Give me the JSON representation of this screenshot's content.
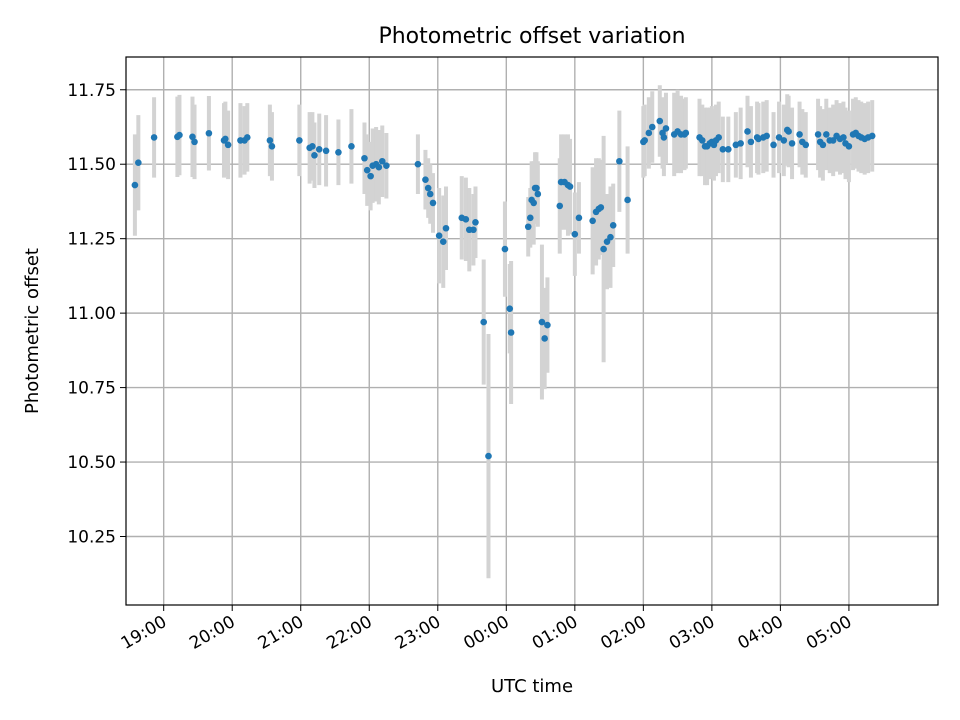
{
  "chart_data": {
    "type": "scatter",
    "title": "Photometric offset variation",
    "xlabel": "UTC time",
    "ylabel": "Photometric offset",
    "grid": true,
    "x_axis": {
      "unit": "hours (UTC clock)",
      "ticks": [
        19,
        20,
        21,
        22,
        23,
        24,
        25,
        26,
        27,
        28,
        29
      ],
      "tick_labels": [
        "19:00",
        "20:00",
        "21:00",
        "22:00",
        "23:00",
        "00:00",
        "01:00",
        "02:00",
        "03:00",
        "04:00",
        "05:00"
      ],
      "xlim": [
        18.45,
        30.3
      ]
    },
    "y_axis": {
      "ticks": [
        10.25,
        10.5,
        10.75,
        11.0,
        11.25,
        11.5,
        11.75
      ],
      "tick_labels": [
        "10.25",
        "10.50",
        "10.75",
        "11.00",
        "11.25",
        "11.50",
        "11.75"
      ],
      "ylim": [
        10.02,
        11.86
      ]
    },
    "series": [
      {
        "color": "#1f77b4",
        "error_color": "#d3d3d3",
        "points": [
          [
            18.58,
            11.43,
            0.17
          ],
          [
            18.63,
            11.505,
            0.16
          ],
          [
            18.86,
            11.59,
            0.135
          ],
          [
            19.2,
            11.592,
            0.135
          ],
          [
            19.23,
            11.598,
            0.135
          ],
          [
            19.42,
            11.592,
            0.135
          ],
          [
            19.45,
            11.575,
            0.125
          ],
          [
            19.66,
            11.604,
            0.125
          ],
          [
            19.88,
            11.58,
            0.125
          ],
          [
            19.9,
            11.585,
            0.125
          ],
          [
            19.94,
            11.565,
            0.115
          ],
          [
            20.12,
            11.58,
            0.125
          ],
          [
            20.18,
            11.58,
            0.115
          ],
          [
            20.22,
            11.59,
            0.115
          ],
          [
            20.55,
            11.58,
            0.12
          ],
          [
            20.58,
            11.56,
            0.115
          ],
          [
            20.98,
            11.58,
            0.12
          ],
          [
            21.13,
            11.555,
            0.12
          ],
          [
            21.17,
            11.56,
            0.115
          ],
          [
            21.2,
            11.53,
            0.11
          ],
          [
            21.27,
            11.55,
            0.12
          ],
          [
            21.37,
            11.545,
            0.12
          ],
          [
            21.55,
            11.54,
            0.11
          ],
          [
            21.74,
            11.56,
            0.125
          ],
          [
            21.93,
            11.52,
            0.12
          ],
          [
            21.97,
            11.48,
            0.12
          ],
          [
            22.02,
            11.46,
            0.115
          ],
          [
            22.05,
            11.495,
            0.125
          ],
          [
            22.1,
            11.5,
            0.125
          ],
          [
            22.14,
            11.49,
            0.125
          ],
          [
            22.19,
            11.51,
            0.12
          ],
          [
            22.25,
            11.495,
            0.11
          ],
          [
            22.71,
            11.5,
            0.1
          ],
          [
            22.82,
            11.448,
            0.1
          ],
          [
            22.86,
            11.42,
            0.1
          ],
          [
            22.89,
            11.4,
            0.1
          ],
          [
            22.93,
            11.37,
            0.1
          ],
          [
            23.02,
            11.26,
            0.16
          ],
          [
            23.08,
            11.24,
            0.155
          ],
          [
            23.12,
            11.285,
            0.14
          ],
          [
            23.35,
            11.32,
            0.14
          ],
          [
            23.41,
            11.315,
            0.14
          ],
          [
            23.46,
            11.28,
            0.14
          ],
          [
            23.55,
            11.305,
            0.12
          ],
          [
            23.52,
            11.28,
            0.12
          ],
          [
            23.67,
            10.97,
            0.21
          ],
          [
            23.74,
            10.52,
            0.41
          ],
          [
            23.98,
            11.215,
            0.16
          ],
          [
            24.05,
            11.015,
            0.15
          ],
          [
            24.07,
            10.935,
            0.24
          ],
          [
            24.32,
            11.29,
            0.1
          ],
          [
            24.35,
            11.32,
            0.1
          ],
          [
            24.37,
            11.38,
            0.13
          ],
          [
            24.4,
            11.37,
            0.14
          ],
          [
            24.42,
            11.42,
            0.12
          ],
          [
            24.44,
            11.42,
            0.12
          ],
          [
            24.46,
            11.4,
            0.11
          ],
          [
            24.52,
            10.97,
            0.26
          ],
          [
            24.56,
            10.915,
            0.17
          ],
          [
            24.6,
            10.96,
            0.16
          ],
          [
            24.78,
            11.36,
            0.16
          ],
          [
            24.8,
            11.44,
            0.16
          ],
          [
            24.85,
            11.44,
            0.16
          ],
          [
            24.9,
            11.43,
            0.17
          ],
          [
            24.93,
            11.425,
            0.16
          ],
          [
            25.0,
            11.265,
            0.14
          ],
          [
            25.06,
            11.32,
            0.12
          ],
          [
            25.26,
            11.31,
            0.18
          ],
          [
            25.31,
            11.34,
            0.18
          ],
          [
            25.35,
            11.35,
            0.17
          ],
          [
            25.38,
            11.355,
            0.16
          ],
          [
            25.42,
            11.215,
            0.38
          ],
          [
            25.47,
            11.24,
            0.16
          ],
          [
            25.52,
            11.255,
            0.17
          ],
          [
            25.56,
            11.295,
            0.14
          ],
          [
            25.65,
            11.51,
            0.17
          ],
          [
            25.77,
            11.38,
            0.18
          ],
          [
            26.0,
            11.575,
            0.12
          ],
          [
            26.02,
            11.58,
            0.12
          ],
          [
            26.08,
            11.605,
            0.12
          ],
          [
            26.13,
            11.625,
            0.12
          ],
          [
            26.24,
            11.645,
            0.12
          ],
          [
            26.28,
            11.605,
            0.12
          ],
          [
            26.3,
            11.59,
            0.13
          ],
          [
            26.33,
            11.62,
            0.12
          ],
          [
            26.45,
            11.6,
            0.14
          ],
          [
            26.5,
            11.61,
            0.14
          ],
          [
            26.55,
            11.6,
            0.13
          ],
          [
            26.6,
            11.6,
            0.12
          ],
          [
            26.62,
            11.605,
            0.12
          ],
          [
            26.82,
            11.59,
            0.13
          ],
          [
            26.86,
            11.58,
            0.12
          ],
          [
            26.9,
            11.56,
            0.13
          ],
          [
            26.93,
            11.56,
            0.13
          ],
          [
            26.97,
            11.57,
            0.12
          ],
          [
            27.0,
            11.575,
            0.12
          ],
          [
            27.03,
            11.565,
            0.12
          ],
          [
            27.06,
            11.58,
            0.12
          ],
          [
            27.1,
            11.59,
            0.12
          ],
          [
            27.16,
            11.55,
            0.11
          ],
          [
            27.24,
            11.55,
            0.11
          ],
          [
            27.35,
            11.565,
            0.11
          ],
          [
            27.42,
            11.57,
            0.12
          ],
          [
            27.52,
            11.61,
            0.12
          ],
          [
            27.57,
            11.575,
            0.12
          ],
          [
            27.66,
            11.59,
            0.12
          ],
          [
            27.68,
            11.585,
            0.12
          ],
          [
            27.75,
            11.59,
            0.12
          ],
          [
            27.8,
            11.595,
            0.12
          ],
          [
            27.9,
            11.565,
            0.11
          ],
          [
            27.98,
            11.59,
            0.12
          ],
          [
            28.05,
            11.58,
            0.12
          ],
          [
            28.1,
            11.615,
            0.12
          ],
          [
            28.12,
            11.61,
            0.12
          ],
          [
            28.17,
            11.57,
            0.12
          ],
          [
            28.28,
            11.6,
            0.11
          ],
          [
            28.32,
            11.575,
            0.11
          ],
          [
            28.37,
            11.565,
            0.11
          ],
          [
            28.55,
            11.6,
            0.12
          ],
          [
            28.58,
            11.575,
            0.12
          ],
          [
            28.62,
            11.565,
            0.12
          ],
          [
            28.67,
            11.6,
            0.12
          ],
          [
            28.72,
            11.58,
            0.11
          ],
          [
            28.77,
            11.58,
            0.12
          ],
          [
            28.82,
            11.595,
            0.12
          ],
          [
            28.87,
            11.585,
            0.12
          ],
          [
            28.92,
            11.59,
            0.12
          ],
          [
            28.95,
            11.57,
            0.12
          ],
          [
            29.0,
            11.56,
            0.12
          ],
          [
            29.06,
            11.6,
            0.12
          ],
          [
            29.1,
            11.605,
            0.12
          ],
          [
            29.14,
            11.595,
            0.12
          ],
          [
            29.18,
            11.59,
            0.12
          ],
          [
            29.23,
            11.585,
            0.12
          ],
          [
            29.28,
            11.59,
            0.12
          ],
          [
            29.34,
            11.595,
            0.12
          ]
        ]
      }
    ]
  }
}
